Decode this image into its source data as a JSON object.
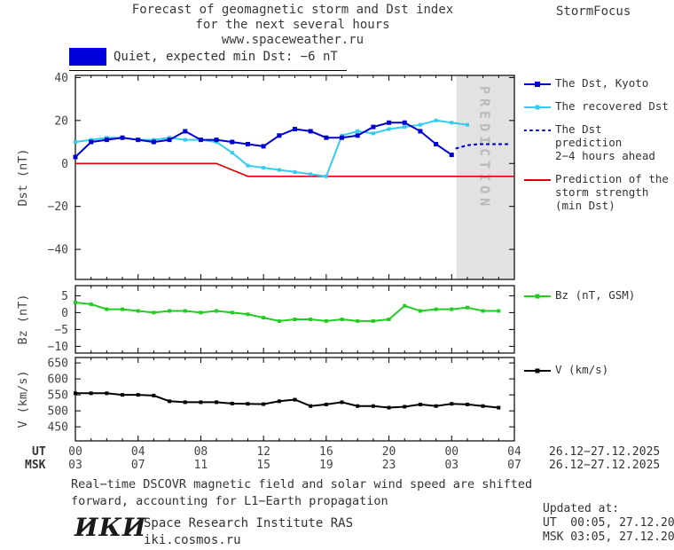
{
  "header": {
    "title_line1": "Forecast of geomagnetic storm and Dst index",
    "title_line2": "for the next several hours",
    "title_line3": "www.spaceweather.ru",
    "brand": "StormFocus"
  },
  "banner": {
    "text": "Quiet, expected min Dst: −6 nT",
    "box_color": "#0000dd"
  },
  "chart_data": {
    "type": "line",
    "x_axis": {
      "range_hours": [
        0,
        28
      ],
      "major_ticks_hours": [
        0,
        4,
        8,
        12,
        16,
        20,
        24,
        28
      ],
      "ut_label": "UT",
      "msk_label": "MSK",
      "ut_tick_labels": [
        "00",
        "04",
        "08",
        "12",
        "16",
        "20",
        "00",
        "04"
      ],
      "msk_tick_labels": [
        "03",
        "07",
        "11",
        "15",
        "19",
        "23",
        "03",
        "07"
      ],
      "ut_date_range": "26.12−27.12.2025",
      "msk_date_range": "26.12−27.12.2025"
    },
    "prediction_band": {
      "start_hour": 24.3,
      "end_hour": 28,
      "label": "PREDICTION",
      "color": "#e2e2e2",
      "text_color": "#b9b9b9"
    },
    "panels": [
      {
        "name": "dst",
        "ylabel": "Dst (nT)",
        "ylim": [
          -54,
          41
        ],
        "yticks": [
          40,
          20,
          0,
          -20,
          -40
        ],
        "series": [
          {
            "label": "The Dst, Kyoto",
            "color": "#0000cc",
            "lw": 2,
            "marker_size": 5,
            "x0": 0,
            "dx": 1,
            "y": [
              3,
              10,
              11,
              12,
              11,
              10,
              11,
              15,
              11,
              11,
              10,
              9,
              8,
              13,
              16,
              15,
              12,
              12,
              13,
              17,
              19,
              19,
              15,
              9,
              4
            ]
          },
          {
            "label": "The recovered Dst",
            "color": "#33ccee",
            "lw": 2,
            "marker_size": 4,
            "x0": 0,
            "dx": 1,
            "y": [
              10,
              11,
              12,
              12,
              11,
              11,
              12,
              11,
              11,
              10,
              5,
              -1,
              -2,
              -3,
              -4,
              -5,
              -6,
              13,
              15,
              14,
              16,
              17,
              18,
              20,
              19,
              18
            ]
          },
          {
            "label": "The Dst prediction\n2−4 hours ahead",
            "color": "#0000cc",
            "lw": 2.2,
            "dash": "2 5",
            "x": [
              24.3,
              25,
              25.7,
              26.4,
              27.1,
              27.8
            ],
            "y": [
              7,
              8.5,
              9,
              9,
              9,
              9
            ]
          },
          {
            "label": "Prediction of the\nstorm strength\n(min Dst)",
            "color": "#dd0000",
            "lw": 1.6,
            "x": [
              0,
              9,
              11,
              28
            ],
            "y": [
              0,
              0,
              -6,
              -6
            ]
          }
        ]
      },
      {
        "name": "bz",
        "ylabel": "Bz (nT)",
        "ylim": [
          -12,
          8
        ],
        "yticks": [
          5,
          0,
          -5,
          -10
        ],
        "series": [
          {
            "label": "Bz (nT, GSM)",
            "color": "#22cc22",
            "lw": 2,
            "marker_size": 4,
            "x0": 0,
            "dx": 1,
            "y": [
              3,
              2.5,
              1,
              1,
              0.5,
              0,
              0.5,
              0.5,
              0,
              0.5,
              0,
              -0.5,
              -1.5,
              -2.5,
              -2,
              -2,
              -2.5,
              -2,
              -2.5,
              -2.5,
              -2,
              2,
              0.5,
              1,
              1,
              1.5,
              0.5,
              0.5
            ]
          }
        ]
      },
      {
        "name": "v",
        "ylabel": "V (km/s)",
        "ylim": [
          406,
          667
        ],
        "yticks": [
          650,
          600,
          550,
          500,
          450
        ],
        "series": [
          {
            "label": "V (km/s)",
            "color": "#000000",
            "lw": 2,
            "marker_size": 4,
            "x0": 0,
            "dx": 1,
            "y": [
              555,
              555,
              555,
              550,
              550,
              548,
              530,
              527,
              527,
              527,
              523,
              522,
              521,
              530,
              535,
              515,
              520,
              527,
              515,
              515,
              510,
              513,
              520,
              515,
              522,
              520,
              515,
              510
            ]
          }
        ]
      }
    ]
  },
  "footer": {
    "note_line1": "Real−time DSCOVR magnetic field and solar wind speed are shifted",
    "note_line2": "forward, accounting for L1−Earth propagation",
    "updated_label": "Updated at:",
    "updated_ut": "UT  00:05, 27.12.2025",
    "updated_msk": "MSK 03:05, 27.12.2025",
    "logo": "ИКИ",
    "institute": "Space Research Institute RAS",
    "site": "iki.cosmos.ru"
  }
}
